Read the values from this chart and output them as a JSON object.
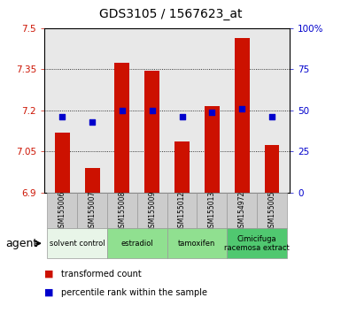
{
  "title": "GDS3105 / 1567623_at",
  "samples": [
    "GSM155006",
    "GSM155007",
    "GSM155008",
    "GSM155009",
    "GSM155012",
    "GSM155013",
    "GSM154972",
    "GSM155005"
  ],
  "bar_values": [
    7.12,
    6.99,
    7.375,
    7.345,
    7.085,
    7.215,
    7.465,
    7.075
  ],
  "percentile_values": [
    46,
    43,
    50,
    50,
    46,
    49,
    51,
    46
  ],
  "ylim_left": [
    6.9,
    7.5
  ],
  "ylim_right": [
    0,
    100
  ],
  "yticks_left": [
    6.9,
    7.05,
    7.2,
    7.35,
    7.5
  ],
  "yticks_right": [
    0,
    25,
    50,
    75,
    100
  ],
  "ytick_labels_left": [
    "6.9",
    "7.05",
    "7.2",
    "7.35",
    "7.5"
  ],
  "ytick_labels_right": [
    "0",
    "25",
    "50",
    "75",
    "100%"
  ],
  "bar_color": "#cc1100",
  "scatter_color": "#0000cc",
  "bar_baseline": 6.9,
  "groups": [
    {
      "label": "solvent control",
      "indices": [
        0,
        1
      ],
      "color": "#e8f5e8"
    },
    {
      "label": "estradiol",
      "indices": [
        2,
        3
      ],
      "color": "#90e090"
    },
    {
      "label": "tamoxifen",
      "indices": [
        4,
        5
      ],
      "color": "#90e090"
    },
    {
      "label": "Cimicifuga\nracemosa extract",
      "indices": [
        6,
        7
      ],
      "color": "#50c870"
    }
  ],
  "grid_color": "#000000",
  "tick_label_color_left": "#cc1100",
  "tick_label_color_right": "#0000cc",
  "xlabel_agent": "agent",
  "legend_bar_label": "transformed count",
  "legend_scatter_label": "percentile rank within the sample",
  "plot_bg_color": "#e8e8e8",
  "sample_box_color": "#cccccc",
  "bar_width": 0.5
}
